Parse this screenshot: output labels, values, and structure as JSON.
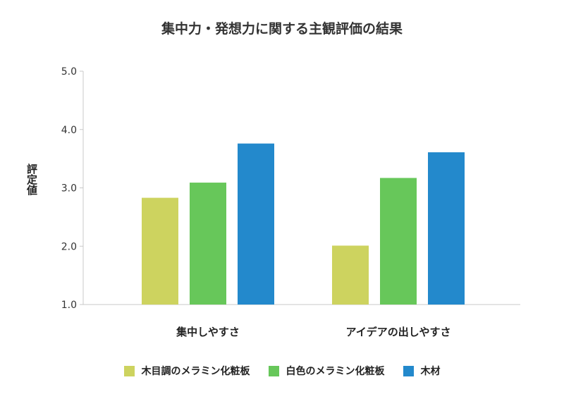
{
  "chart_data": {
    "type": "bar",
    "title": "集中力・発想力に関する主観評価の結果",
    "xlabel": "",
    "ylabel": "評定値",
    "ylim": [
      1.0,
      5.0
    ],
    "yticks": [
      "1.0",
      "2.0",
      "3.0",
      "4.0",
      "5.0"
    ],
    "categories": [
      "集中しやすさ",
      "アイデアの出しやすさ"
    ],
    "series": [
      {
        "name": "木目調のメラミン化粧板",
        "color": "#cdd35f",
        "values": [
          2.83,
          2.01
        ]
      },
      {
        "name": "白色のメラミン化粧板",
        "color": "#67c75a",
        "values": [
          3.09,
          3.17
        ]
      },
      {
        "name": "木材",
        "color": "#2389cc",
        "values": [
          3.76,
          3.61
        ]
      }
    ],
    "grid": false,
    "legend": "bottom"
  }
}
